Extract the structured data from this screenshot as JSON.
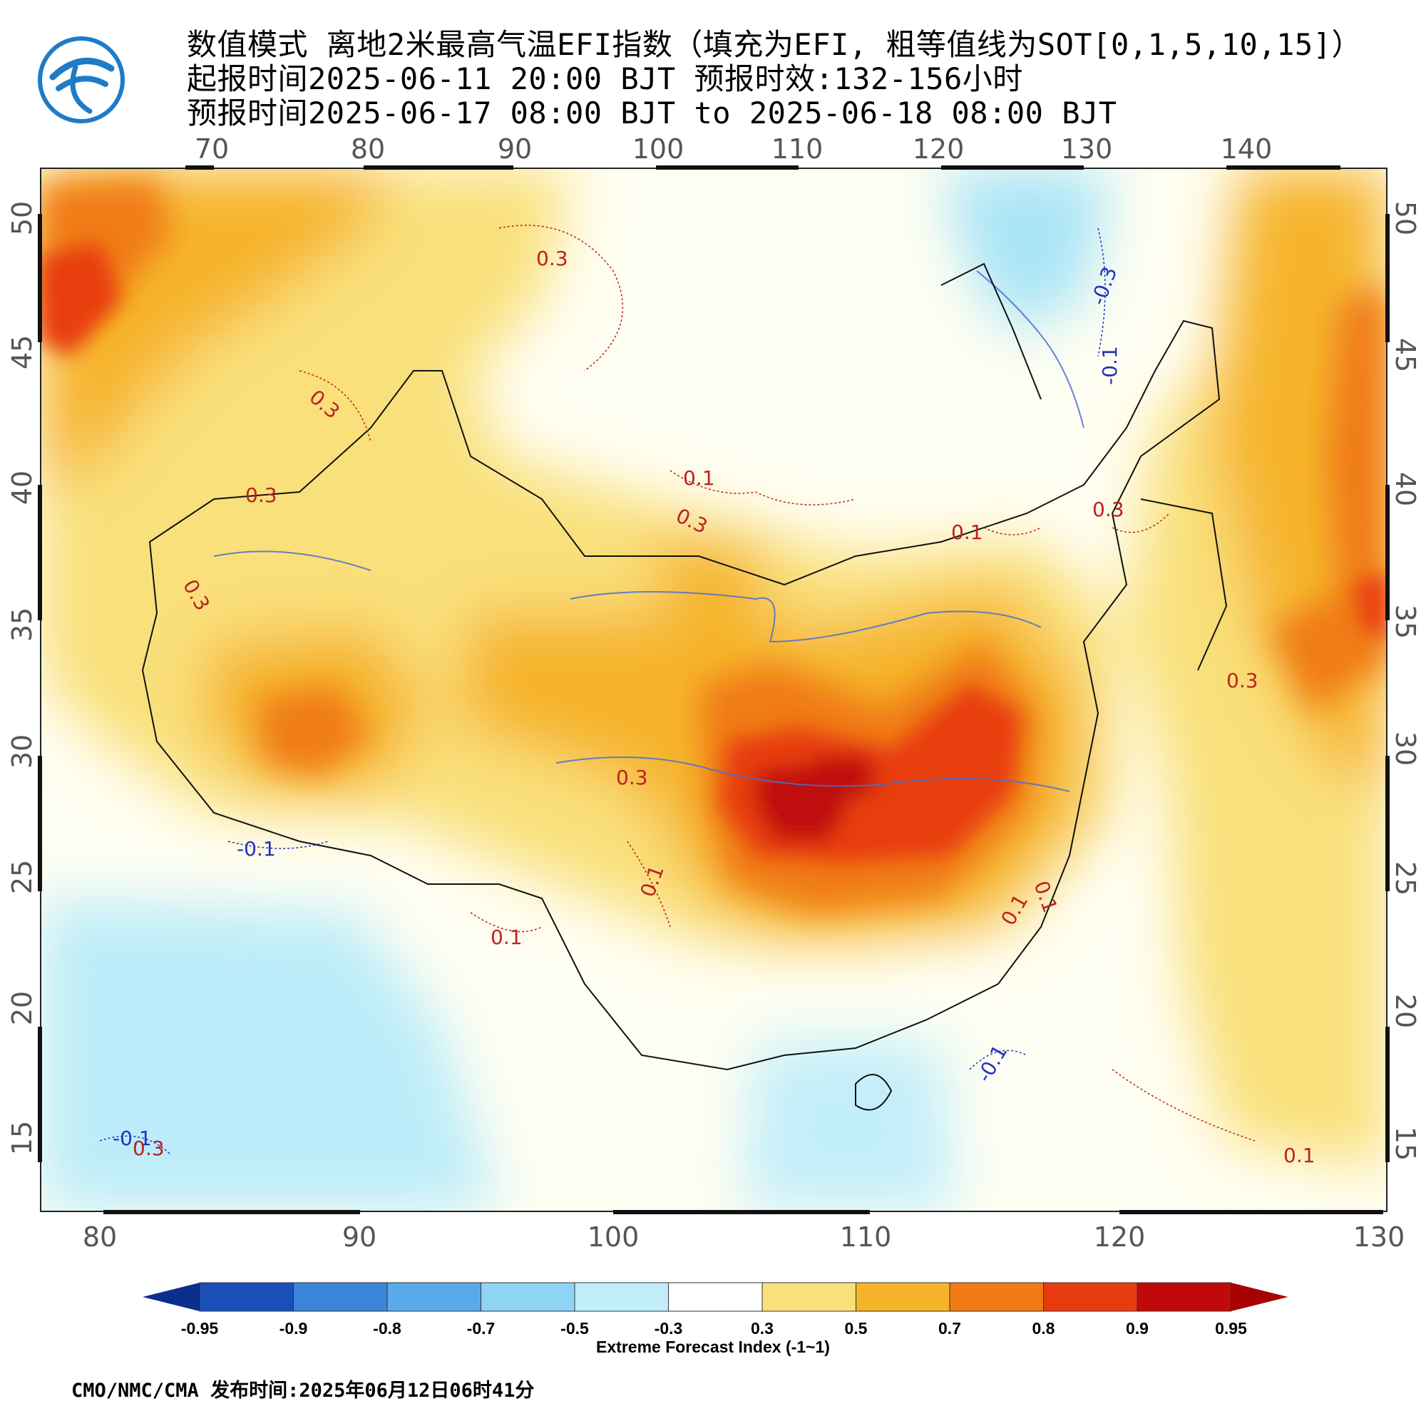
{
  "header": {
    "line1": "数值模式 离地2米最高气温EFI指数（填充为EFI, 粗等值线为SOT[0,1,5,10,15]）",
    "line2": "起报时间2025-06-11 20:00 BJT 预报时效:132-156小时",
    "line3": "预报时间2025-06-17 08:00 BJT to 2025-06-18 08:00 BJT"
  },
  "map": {
    "top_lon_labels": [
      "70",
      "80",
      "90",
      "100",
      "110",
      "120",
      "130",
      "140"
    ],
    "bottom_lon_labels": [
      "80",
      "90",
      "100",
      "110",
      "120",
      "130"
    ],
    "left_lat_labels": [
      "50",
      "45",
      "40",
      "35",
      "30",
      "25",
      "20",
      "15"
    ],
    "right_lat_labels": [
      "50",
      "45",
      "40",
      "35",
      "30",
      "25",
      "20",
      "15"
    ],
    "contour_labels": [
      "0.3",
      "0.3",
      "0.3",
      "0.1",
      "0.3",
      "0.1",
      "0.3",
      "0.3",
      "-0.3",
      "-0.1",
      "0.3",
      "0.3",
      "-0.1",
      "0.1",
      "0.1",
      "0.1",
      "0.1",
      "-0.1",
      "-0.1",
      "0.1",
      "0.3"
    ]
  },
  "colorbar": {
    "tick_labels": [
      "-0.95",
      "-0.9",
      "-0.8",
      "-0.7",
      "-0.5",
      "-0.3",
      "0.3",
      "0.5",
      "0.7",
      "0.8",
      "0.9",
      "0.95"
    ],
    "colors": [
      "#1a4fb8",
      "#3b86d8",
      "#5aa9e8",
      "#8fd3f5",
      "#c2eefa",
      "#ffffff",
      "#f9e07a",
      "#f6b42a",
      "#f07b14",
      "#e83c10",
      "#c00a0a"
    ],
    "title": "Extreme Forecast Index (-1~1)"
  },
  "footer": {
    "text": "CMO/NMC/CMA 发布时间:2025年06月12日06时41分"
  }
}
